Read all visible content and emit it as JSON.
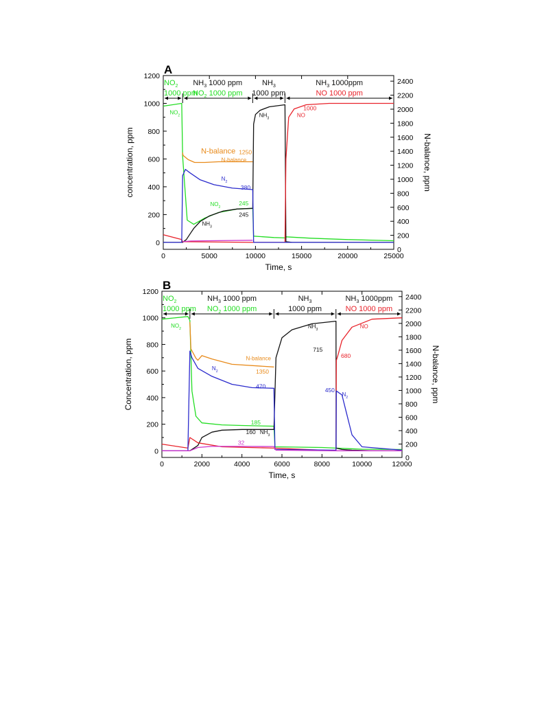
{
  "colors": {
    "NO2": "#22dd22",
    "NH3": "#111111",
    "NO": "#e8222a",
    "N2": "#2a2acc",
    "N-balance": "#e88a1a",
    "N2O": "#cc33cc"
  },
  "chart_data": [
    {
      "type": "line",
      "panel": "A",
      "xlabel": "Time, s",
      "ylabel": "concentration, ppm",
      "y2label": "N-balance, ppm",
      "xlim": [
        0,
        25000
      ],
      "ylim": [
        -50,
        1200
      ],
      "y2lim": [
        0,
        2480
      ],
      "xticks": [
        0,
        5000,
        10000,
        15000,
        20000,
        25000
      ],
      "yticks": [
        0,
        200,
        400,
        600,
        800,
        1000,
        1200
      ],
      "y2ticks": [
        0,
        200,
        400,
        600,
        800,
        1000,
        1200,
        1400,
        1600,
        1800,
        2000,
        2200,
        2400
      ],
      "phases": [
        {
          "t0": 0,
          "t1": 2100,
          "line1": "NO",
          "line1_sub": "2",
          "line1_rest": "",
          "line2": "1000 ppm",
          "color1": "NO2",
          "color2": "NO2"
        },
        {
          "t0": 2100,
          "t1": 9700,
          "line1": "NH",
          "line1_sub": "3",
          "line1_rest": " 1000 ppm",
          "line2": "NO",
          "line2_sub": "2",
          "line2_rest": " 1000 ppm",
          "color1": "NH3",
          "color2": "NO2"
        },
        {
          "t0": 9700,
          "t1": 13200,
          "line1": "NH",
          "line1_sub": "3",
          "line1_rest": "",
          "line2": "1000 ppm",
          "color1": "NH3",
          "color2": "NH3"
        },
        {
          "t0": 13200,
          "t1": 25000,
          "line1": "NH",
          "line1_sub": "3",
          "line1_rest": " 1000ppm",
          "line2": "NO 1000 ppm",
          "color1": "NH3",
          "color2": "NO"
        }
      ],
      "series": [
        {
          "name": "NO2",
          "axis": "left",
          "x": [
            0,
            2000,
            2100,
            2600,
            3300,
            4500,
            6000,
            8000,
            9700,
            9800,
            12000,
            13200,
            13300,
            16000,
            20000,
            25000
          ],
          "y": [
            980,
            1000,
            620,
            160,
            130,
            175,
            215,
            240,
            245,
            45,
            35,
            32,
            40,
            30,
            20,
            12
          ]
        },
        {
          "name": "NH3",
          "axis": "left",
          "x": [
            0,
            2100,
            2500,
            3000,
            3300,
            4000,
            5000,
            6500,
            8000,
            9700,
            9800,
            10000,
            10500,
            11500,
            13200,
            13300,
            14000,
            25000
          ],
          "y": [
            0,
            0,
            20,
            70,
            100,
            150,
            190,
            225,
            240,
            245,
            850,
            920,
            950,
            975,
            990,
            5,
            0,
            0
          ]
        },
        {
          "name": "NO",
          "axis": "left",
          "x": [
            0,
            2000,
            2100,
            9700,
            13200,
            13300,
            13600,
            14200,
            15500,
            18000,
            25000
          ],
          "y": [
            55,
            20,
            5,
            0,
            0,
            600,
            900,
            960,
            990,
            1000,
            1000
          ]
        },
        {
          "name": "N2",
          "axis": "left",
          "x": [
            0,
            2000,
            2100,
            2400,
            2900,
            4000,
            5500,
            7500,
            9700,
            9800,
            25000
          ],
          "y": [
            0,
            0,
            480,
            525,
            500,
            450,
            415,
            390,
            380,
            0,
            0
          ]
        },
        {
          "name": "N-balance",
          "axis": "right",
          "x": [
            2100,
            2150,
            2700,
            3400,
            4500,
            6000,
            9700
          ],
          "y": [
            1380,
            1340,
            1280,
            1240,
            1240,
            1250,
            1250
          ]
        },
        {
          "name": "N2O",
          "axis": "left",
          "x": [
            2100,
            3000,
            5000,
            9700
          ],
          "y": [
            5,
            10,
            12,
            15
          ]
        }
      ],
      "labels": [
        {
          "text": "NO",
          "sub": "2",
          "x": 700,
          "y": 920,
          "color": "NO2"
        },
        {
          "text": "NH",
          "sub": "3",
          "x": 10400,
          "y": 900,
          "color": "NH3"
        },
        {
          "text": "NO",
          "sub": "",
          "x": 14500,
          "y": 900,
          "color": "NO"
        },
        {
          "text": "1000",
          "sub": "",
          "x": 15200,
          "y": 950,
          "color": "NO"
        },
        {
          "text": "N-balance",
          "sub": "",
          "x": 4100,
          "y": 640,
          "color": "N-balance",
          "big": true
        },
        {
          "text": "1250",
          "sub": "",
          "x": 8200,
          "y": 635,
          "color": "N-balance"
        },
        {
          "text": "N-balance",
          "sub": "",
          "x": 6300,
          "y": 580,
          "color": "N-balance"
        },
        {
          "text": "N",
          "sub": "2",
          "x": 6300,
          "y": 445,
          "color": "N2"
        },
        {
          "text": "380",
          "sub": "",
          "x": 8400,
          "y": 380,
          "color": "N2"
        },
        {
          "text": "NO",
          "sub": "2",
          "x": 5100,
          "y": 262,
          "color": "NO2"
        },
        {
          "text": "245",
          "sub": "",
          "x": 8200,
          "y": 265,
          "color": "NO2"
        },
        {
          "text": "245",
          "sub": "",
          "x": 8200,
          "y": 185,
          "color": "NH3"
        },
        {
          "text": "NH",
          "sub": "3",
          "x": 4200,
          "y": 120,
          "color": "NH3"
        }
      ]
    },
    {
      "type": "line",
      "panel": "B",
      "xlabel": "Time, s",
      "ylabel": "Concentration, ppm",
      "y2label": "N-balance, ppm",
      "xlim": [
        0,
        12000
      ],
      "ylim": [
        -50,
        1200
      ],
      "y2lim": [
        0,
        2480
      ],
      "xticks": [
        0,
        2000,
        4000,
        6000,
        8000,
        10000,
        12000
      ],
      "yticks": [
        0,
        200,
        400,
        600,
        800,
        1000,
        1200
      ],
      "y2ticks": [
        0,
        200,
        400,
        600,
        800,
        1000,
        1200,
        1400,
        1600,
        1800,
        2000,
        2200,
        2400
      ],
      "phases": [
        {
          "t0": 0,
          "t1": 1400,
          "line1": "NO",
          "line1_sub": "2",
          "line1_rest": "",
          "line2": "1000 ppm",
          "color1": "NO2",
          "color2": "NO2"
        },
        {
          "t0": 1400,
          "t1": 5600,
          "line1": "NH",
          "line1_sub": "3",
          "line1_rest": " 1000 ppm",
          "line2": "NO",
          "line2_sub": "2",
          "line2_rest": " 1000 ppm",
          "color1": "NH3",
          "color2": "NO2"
        },
        {
          "t0": 5600,
          "t1": 8700,
          "line1": "NH",
          "line1_sub": "3",
          "line1_rest": "",
          "line2": "1000 ppm",
          "color1": "NH3",
          "color2": "NH3"
        },
        {
          "t0": 8700,
          "t1": 12000,
          "line1": "NH",
          "line1_sub": "3",
          "line1_rest": " 1000ppm",
          "line2": "NO 1000 ppm",
          "color1": "NH3",
          "color2": "NO"
        }
      ],
      "series": [
        {
          "name": "NO2",
          "axis": "left",
          "x": [
            0,
            1300,
            1400,
            1500,
            1700,
            2000,
            3000,
            4000,
            5600,
            5650,
            8000,
            8700,
            10000,
            12000
          ],
          "y": [
            990,
            1010,
            980,
            450,
            260,
            210,
            195,
            190,
            185,
            30,
            25,
            20,
            12,
            10
          ]
        },
        {
          "name": "NH3",
          "axis": "left",
          "x": [
            0,
            1400,
            1800,
            2000,
            2500,
            3000,
            4000,
            5600,
            5700,
            6000,
            6500,
            7500,
            8700,
            8710,
            9000,
            9500,
            10500,
            12000
          ],
          "y": [
            0,
            0,
            40,
            100,
            140,
            155,
            160,
            160,
            700,
            850,
            910,
            955,
            975,
            20,
            10,
            5,
            0,
            0
          ]
        },
        {
          "name": "NO",
          "axis": "left",
          "x": [
            0,
            1300,
            1400,
            1800,
            3000,
            5600,
            8700,
            8720,
            8800,
            9000,
            9500,
            10500,
            12000
          ],
          "y": [
            50,
            20,
            100,
            60,
            30,
            20,
            0,
            680,
            720,
            830,
            930,
            990,
            1000
          ]
        },
        {
          "name": "N2",
          "axis": "left",
          "x": [
            0,
            1300,
            1400,
            1500,
            1800,
            2500,
            3500,
            4500,
            5600,
            5650,
            8700,
            8720,
            9000,
            9200,
            9500,
            10000,
            12000
          ],
          "y": [
            0,
            0,
            750,
            700,
            620,
            560,
            500,
            475,
            470,
            10,
            5,
            450,
            420,
            300,
            120,
            30,
            5
          ]
        },
        {
          "name": "N-balance",
          "axis": "right",
          "x": [
            1400,
            1450,
            1700,
            1800,
            2000,
            2500,
            3500,
            5600
          ],
          "y": [
            2020,
            1620,
            1480,
            1450,
            1520,
            1470,
            1390,
            1350
          ]
        },
        {
          "name": "N2O",
          "axis": "left",
          "x": [
            0,
            1400,
            1800,
            2500,
            3500,
            5600,
            5700,
            8700,
            12000
          ],
          "y": [
            0,
            0,
            25,
            33,
            33,
            32,
            5,
            0,
            0
          ]
        }
      ],
      "labels": [
        {
          "text": "NO",
          "sub": "2",
          "x": 450,
          "y": 925,
          "color": "NO2"
        },
        {
          "text": "NH",
          "sub": "3",
          "x": 7300,
          "y": 920,
          "color": "NH3"
        },
        {
          "text": "NO",
          "sub": "",
          "x": 9900,
          "y": 920,
          "color": "NO"
        },
        {
          "text": "715",
          "sub": "",
          "x": 7550,
          "y": 745,
          "color": "NH3"
        },
        {
          "text": "680",
          "sub": "",
          "x": 8950,
          "y": 700,
          "color": "NO"
        },
        {
          "text": "N-balance",
          "sub": "",
          "x": 4200,
          "y": 680,
          "color": "N-balance"
        },
        {
          "text": "1350",
          "sub": "",
          "x": 4700,
          "y": 580,
          "color": "N-balance"
        },
        {
          "text": "N",
          "sub": "2",
          "x": 2500,
          "y": 605,
          "color": "N2"
        },
        {
          "text": "470",
          "sub": "",
          "x": 4700,
          "y": 470,
          "color": "N2"
        },
        {
          "text": "450",
          "sub": "",
          "x": 8150,
          "y": 440,
          "color": "N2"
        },
        {
          "text": "N",
          "sub": "2",
          "x": 9000,
          "y": 410,
          "color": "N2"
        },
        {
          "text": "185",
          "sub": "",
          "x": 4450,
          "y": 198,
          "color": "NO2"
        },
        {
          "text": "160",
          "sub": "",
          "x": 4200,
          "y": 125,
          "color": "NH3"
        },
        {
          "text": "NH",
          "sub": "3",
          "x": 4900,
          "y": 125,
          "color": "NH3"
        },
        {
          "text": "32",
          "sub": "",
          "x": 3800,
          "y": 45,
          "color": "N2O"
        }
      ]
    }
  ]
}
